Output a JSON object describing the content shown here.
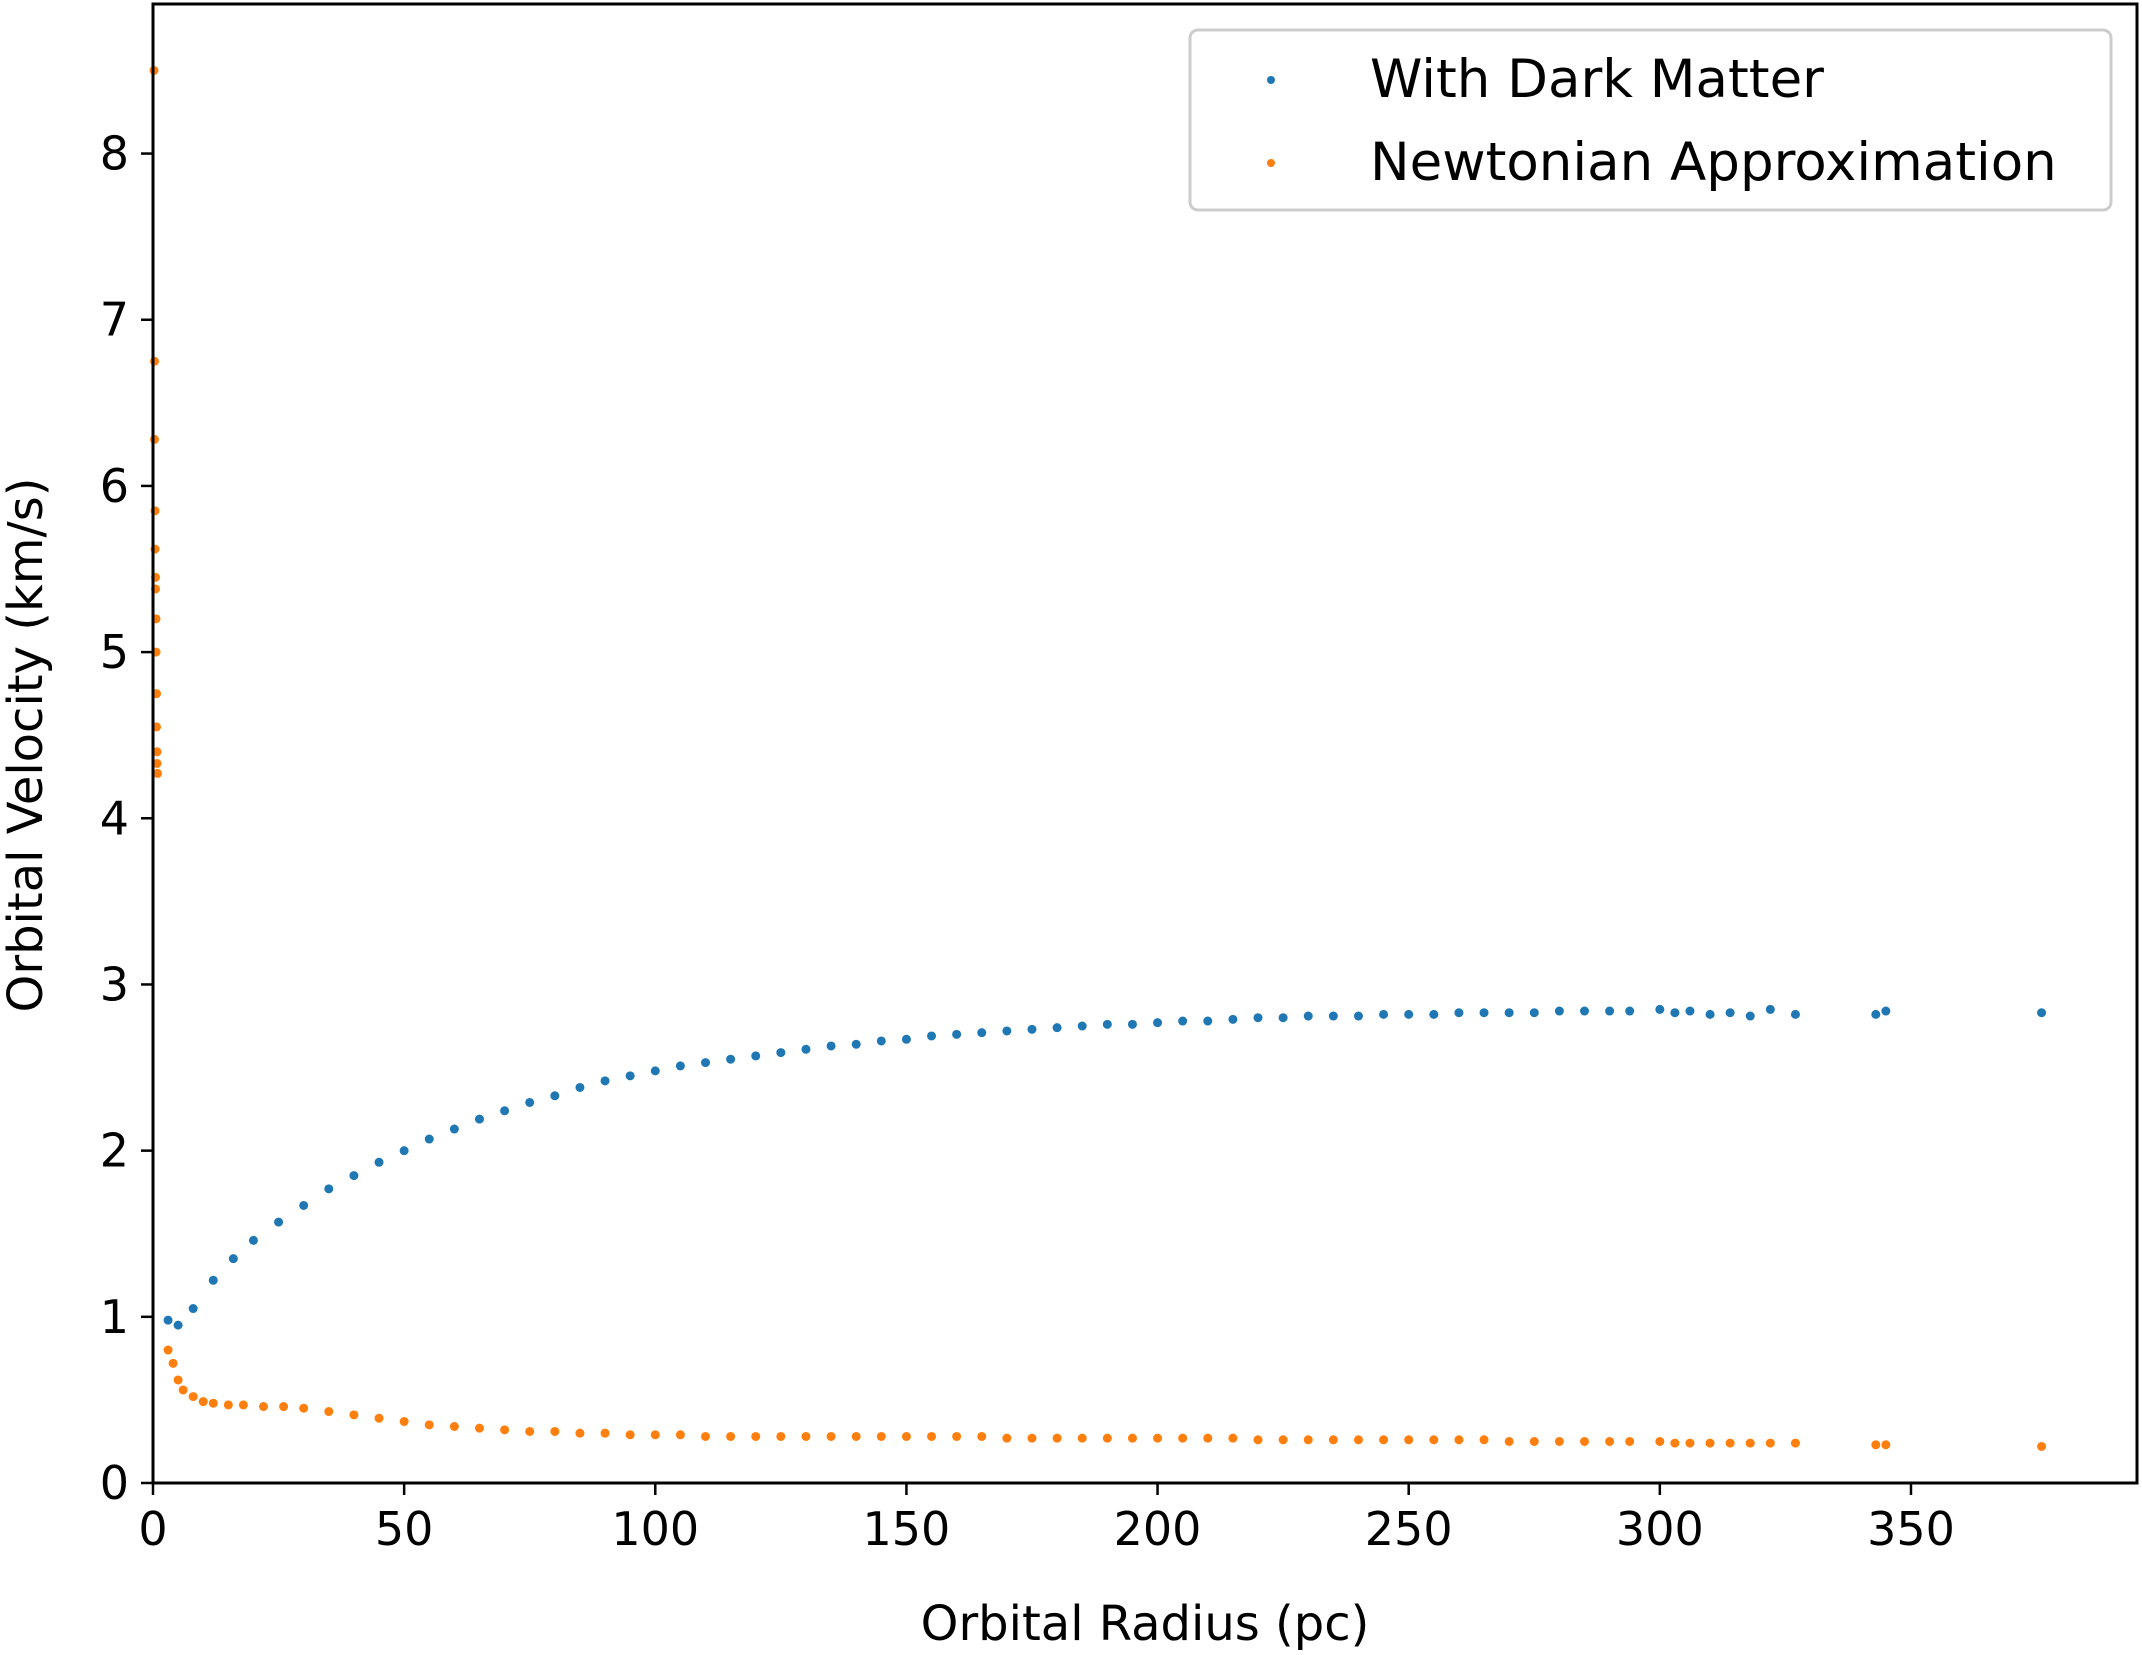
{
  "chart_data": {
    "type": "scatter",
    "title": "",
    "xlabel": "Orbital Radius (pc)",
    "ylabel": "Orbital Velocity (km/s)",
    "xlim": [
      0,
      395
    ],
    "ylim": [
      0,
      8.9
    ],
    "xticks": [
      "0",
      "50",
      "100",
      "150",
      "200",
      "250",
      "300",
      "350"
    ],
    "yticks": [
      "0",
      "1",
      "2",
      "3",
      "4",
      "5",
      "6",
      "7",
      "8"
    ],
    "grid": false,
    "legend": "top-right",
    "series": [
      {
        "name": "With Dark Matter",
        "color": "#1f77b4",
        "x": [
          3,
          5,
          8,
          12,
          16,
          20,
          25,
          30,
          35,
          40,
          45,
          50,
          55,
          60,
          65,
          70,
          75,
          80,
          85,
          90,
          95,
          100,
          105,
          110,
          115,
          120,
          125,
          130,
          135,
          140,
          145,
          150,
          155,
          160,
          165,
          170,
          175,
          180,
          185,
          190,
          195,
          200,
          205,
          210,
          215,
          220,
          225,
          230,
          235,
          240,
          245,
          250,
          255,
          260,
          265,
          270,
          275,
          280,
          285,
          290,
          294,
          300,
          303,
          306,
          310,
          314,
          318,
          322,
          327,
          343,
          345,
          376
        ],
        "y": [
          0.98,
          0.95,
          1.05,
          1.22,
          1.35,
          1.46,
          1.57,
          1.67,
          1.77,
          1.85,
          1.93,
          2.0,
          2.07,
          2.13,
          2.19,
          2.24,
          2.29,
          2.33,
          2.38,
          2.42,
          2.45,
          2.48,
          2.51,
          2.53,
          2.55,
          2.57,
          2.59,
          2.61,
          2.63,
          2.64,
          2.66,
          2.67,
          2.69,
          2.7,
          2.71,
          2.72,
          2.73,
          2.74,
          2.75,
          2.76,
          2.76,
          2.77,
          2.78,
          2.78,
          2.79,
          2.8,
          2.8,
          2.81,
          2.81,
          2.81,
          2.82,
          2.82,
          2.82,
          2.83,
          2.83,
          2.83,
          2.83,
          2.84,
          2.84,
          2.84,
          2.84,
          2.85,
          2.83,
          2.84,
          2.82,
          2.83,
          2.81,
          2.85,
          2.82,
          2.82,
          2.84,
          2.83
        ]
      },
      {
        "name": "Newtonian Approximation",
        "color": "#ff7f0e",
        "x": [
          0.2,
          0.3,
          0.3,
          0.4,
          0.4,
          0.5,
          0.5,
          0.6,
          0.6,
          0.7,
          0.7,
          0.8,
          0.8,
          0.9,
          3,
          4,
          5,
          6,
          8,
          10,
          12,
          15,
          18,
          22,
          26,
          30,
          35,
          40,
          45,
          50,
          55,
          60,
          65,
          70,
          75,
          80,
          85,
          90,
          95,
          100,
          105,
          110,
          115,
          120,
          125,
          130,
          135,
          140,
          145,
          150,
          155,
          160,
          165,
          170,
          175,
          180,
          185,
          190,
          195,
          200,
          205,
          210,
          215,
          220,
          225,
          230,
          235,
          240,
          245,
          250,
          255,
          260,
          265,
          270,
          275,
          280,
          285,
          290,
          294,
          300,
          303,
          306,
          310,
          314,
          318,
          322,
          327,
          343,
          345,
          376
        ],
        "y": [
          8.5,
          6.75,
          6.28,
          5.85,
          5.62,
          5.45,
          5.38,
          5.2,
          5.0,
          4.75,
          4.55,
          4.4,
          4.33,
          4.27,
          0.8,
          0.72,
          0.62,
          0.56,
          0.52,
          0.49,
          0.48,
          0.47,
          0.47,
          0.46,
          0.46,
          0.45,
          0.43,
          0.41,
          0.39,
          0.37,
          0.35,
          0.34,
          0.33,
          0.32,
          0.31,
          0.31,
          0.3,
          0.3,
          0.29,
          0.29,
          0.29,
          0.28,
          0.28,
          0.28,
          0.28,
          0.28,
          0.28,
          0.28,
          0.28,
          0.28,
          0.28,
          0.28,
          0.28,
          0.27,
          0.27,
          0.27,
          0.27,
          0.27,
          0.27,
          0.27,
          0.27,
          0.27,
          0.27,
          0.26,
          0.26,
          0.26,
          0.26,
          0.26,
          0.26,
          0.26,
          0.26,
          0.26,
          0.26,
          0.25,
          0.25,
          0.25,
          0.25,
          0.25,
          0.25,
          0.25,
          0.24,
          0.24,
          0.24,
          0.24,
          0.24,
          0.24,
          0.24,
          0.23,
          0.23,
          0.22
        ]
      }
    ]
  }
}
